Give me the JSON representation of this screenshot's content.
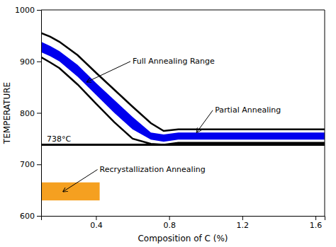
{
  "chart_data": {
    "type": "line",
    "xlabel": "Composition of C (%)",
    "ylabel": "TEMPERATURE",
    "xlim": [
      0.1,
      1.65
    ],
    "ylim": [
      600,
      1000
    ],
    "xticks": [
      0.4,
      0.8,
      1.2,
      1.6
    ],
    "yticks": [
      600,
      700,
      800,
      900,
      1000
    ],
    "grid": false,
    "x": [
      0.1,
      0.15,
      0.2,
      0.3,
      0.4,
      0.5,
      0.6,
      0.7,
      0.77,
      0.85,
      1.65
    ],
    "series": [
      {
        "type": "band",
        "color": "#0000EE",
        "values": [
          938,
          930,
          920,
          893,
          858,
          825,
          792,
          762,
          758,
          762,
          762
        ],
        "lower_values": [
          918,
          910,
          900,
          870,
          835,
          800,
          768,
          748,
          744,
          748,
          748
        ]
      },
      {
        "type": "line",
        "color": "#000000",
        "values": [
          955,
          948,
          938,
          912,
          878,
          845,
          812,
          780,
          765,
          768,
          768
        ]
      },
      {
        "type": "line",
        "color": "#000000",
        "values": [
          908,
          898,
          887,
          855,
          818,
          782,
          750,
          740,
          738,
          742,
          742
        ]
      }
    ],
    "hline": {
      "value": 738,
      "label": "738°C",
      "color": "#000000"
    },
    "rect": {
      "x0": 0.1,
      "x1": 0.42,
      "y0": 630,
      "y1": 665,
      "color": "#F5A020"
    },
    "annotations": [
      {
        "text": "Full Annealing Range",
        "xy": [
          0.35,
          860
        ],
        "xytext": [
          0.6,
          900
        ]
      },
      {
        "text": "Partial Annealing",
        "xy": [
          0.95,
          762
        ],
        "xytext": [
          1.05,
          805
        ]
      },
      {
        "text": "Recrystallization Annealing",
        "xy": [
          0.22,
          647
        ],
        "xytext": [
          0.42,
          690
        ]
      }
    ]
  }
}
